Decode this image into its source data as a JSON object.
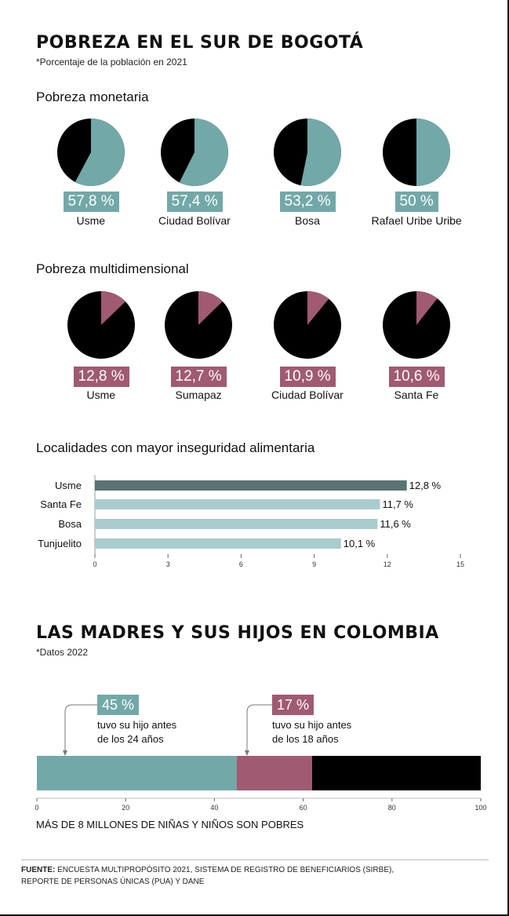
{
  "title": "POBREZA EN EL SUR DE BOGOTÁ",
  "subtitle": "*Porcentaje de la población en 2021",
  "monetary": {
    "heading": "Pobreza monetaria",
    "items": [
      {
        "label": "57,8 %",
        "name": "Usme",
        "value": 57.8
      },
      {
        "label": "57,4 %",
        "name": "Ciudad Bolívar",
        "value": 57.4
      },
      {
        "label": "53,2 %",
        "name": "Bosa",
        "value": 53.2
      },
      {
        "label": "50 %",
        "name": "Rafael Uribe Uribe",
        "value": 50
      }
    ]
  },
  "multidim": {
    "heading": "Pobreza multidimensional",
    "items": [
      {
        "label": "12,8 %",
        "name": "Usme",
        "value": 12.8
      },
      {
        "label": "12,7 %",
        "name": "Sumapaz",
        "value": 12.7
      },
      {
        "label": "10,9 %",
        "name": "Ciudad Bolívar",
        "value": 10.9
      },
      {
        "label": "10,6 %",
        "name": "Santa Fe",
        "value": 10.6
      }
    ]
  },
  "food": {
    "heading": "Localidades con mayor inseguridad alimentaria",
    "ticks": [
      "0",
      "3",
      "6",
      "9",
      "12",
      "15"
    ]
  },
  "mothers": {
    "title": "LAS MADRES Y SUS HIJOS EN COLOMBIA",
    "subtitle": "*Datos 2022",
    "callout1": {
      "pct": "45 %",
      "line1": "tuvo su hijo antes",
      "line2": "de los 24 años"
    },
    "callout2": {
      "pct": "17 %",
      "line1": "tuvo su hijo antes",
      "line2": "de los 18 años"
    },
    "ticks": [
      "0",
      "20",
      "40",
      "60",
      "80",
      "100"
    ],
    "caption": "MÁS DE 8 MILLONES DE NIÑAS Y NIÑOS SON POBRES"
  },
  "source": {
    "bold": "FUENTE:",
    "line1": " ENCUESTA MULTIPROPÓSITO 2021, SISTEMA DE REGISTRO DE BENEFICIARIOS (SIRBE),",
    "line2": "REPORTE DE PERSONAS ÚNICAS (PUA) Y DANE"
  },
  "colors": {
    "teal": "#72a8a8",
    "wine": "#a05a72",
    "black": "#000000",
    "darkbar": "#5a7474",
    "lightbar": "#a9cccc"
  },
  "chart_data": [
    {
      "type": "pie",
      "title": "Pobreza monetaria",
      "categories": [
        "Usme",
        "Ciudad Bolívar",
        "Bosa",
        "Rafael Uribe Uribe"
      ],
      "values": [
        57.8,
        57.4,
        53.2,
        50
      ]
    },
    {
      "type": "pie",
      "title": "Pobreza multidimensional",
      "categories": [
        "Usme",
        "Sumapaz",
        "Ciudad Bolívar",
        "Santa Fe"
      ],
      "values": [
        12.8,
        12.7,
        10.9,
        10.6
      ]
    },
    {
      "type": "bar",
      "title": "Localidades con mayor inseguridad alimentaria",
      "categories": [
        "Usme",
        "Santa Fe",
        "Bosa",
        "Tunjuelito"
      ],
      "values": [
        12.8,
        11.7,
        11.6,
        10.1
      ],
      "value_labels": [
        "12,8 %",
        "11,7 %",
        "11,6 %",
        "10,1 %"
      ],
      "xlim": [
        0,
        15
      ],
      "orientation": "horizontal"
    },
    {
      "type": "bar",
      "title": "LAS MADRES Y SUS HIJOS EN COLOMBIA",
      "orientation": "horizontal-stacked",
      "segments": [
        {
          "label": "45 %",
          "value": 45
        },
        {
          "label": "17 %",
          "value": 17
        },
        {
          "value": 38
        }
      ],
      "xlim": [
        0,
        100
      ]
    }
  ]
}
